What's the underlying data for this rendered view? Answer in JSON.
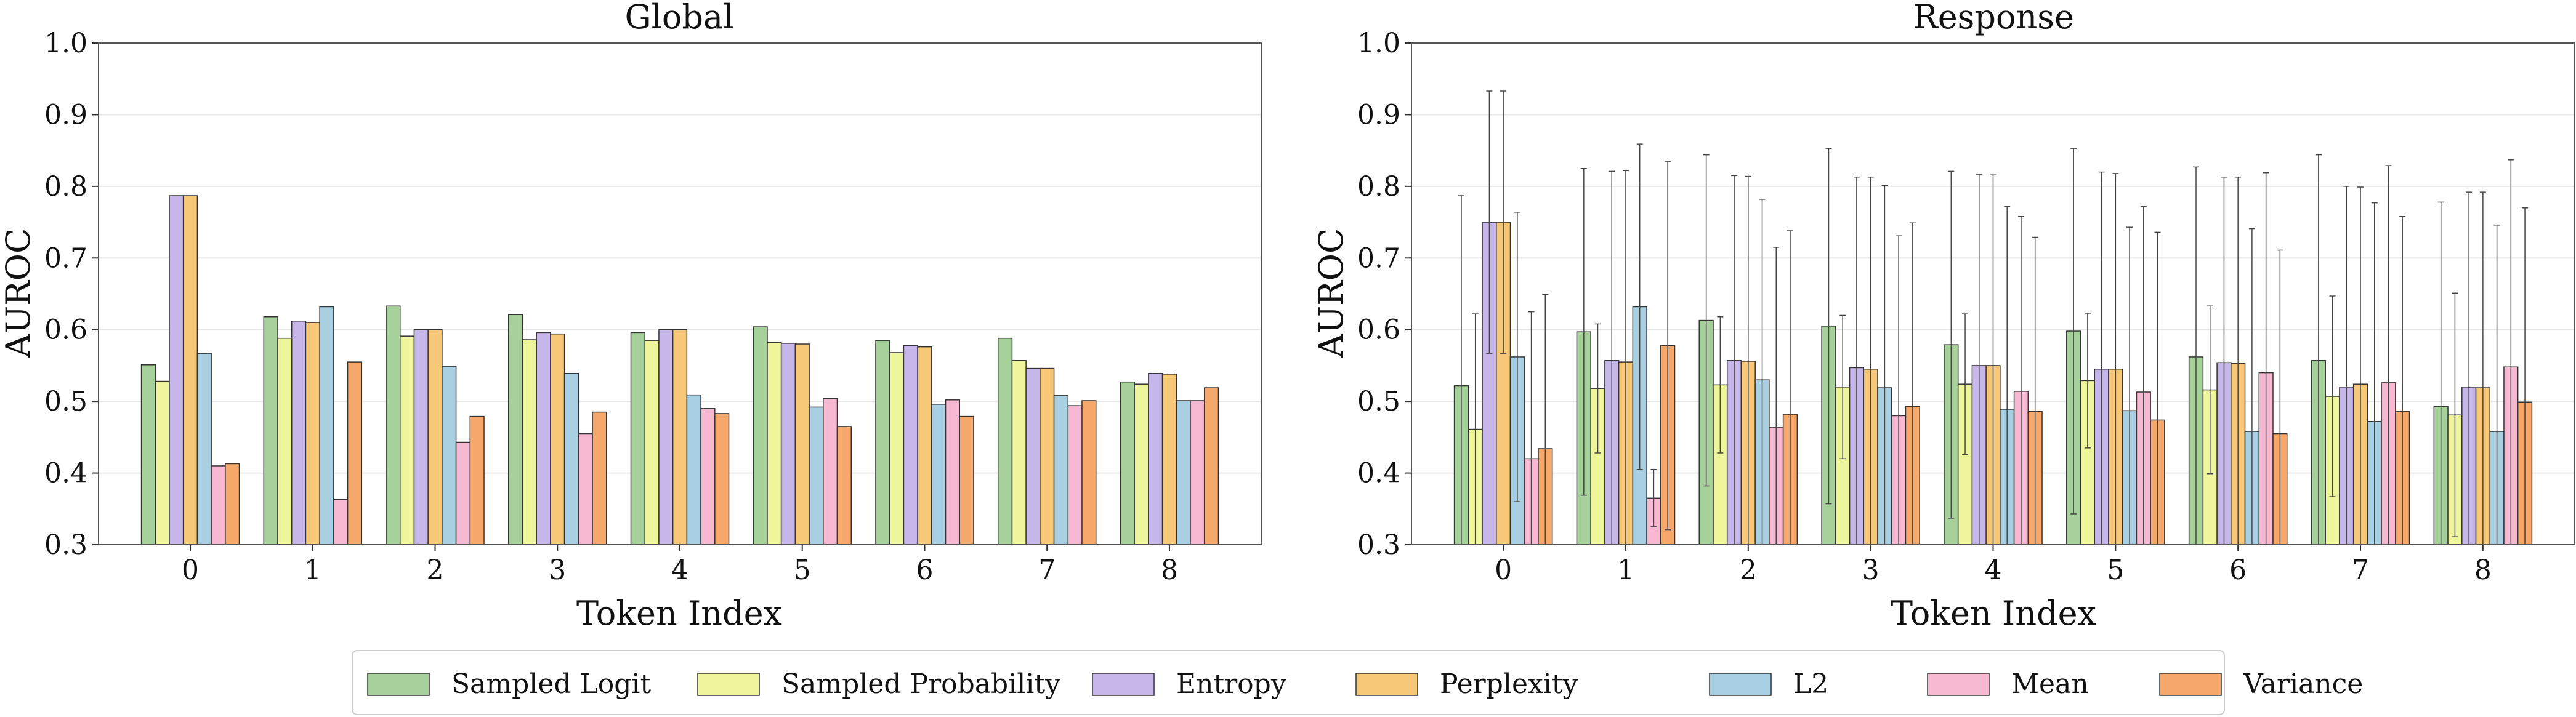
{
  "chart_data": [
    {
      "type": "bar",
      "title": "Global",
      "xlabel": "Token Index",
      "ylabel": "AUROC",
      "ylim": [
        0.3,
        1.0
      ],
      "yticks": [
        "0.3",
        "0.4",
        "0.5",
        "0.6",
        "0.7",
        "0.8",
        "0.9",
        "1.0"
      ],
      "categories": [
        "0",
        "1",
        "2",
        "3",
        "4",
        "5",
        "6",
        "7",
        "8"
      ],
      "grid": "horizontal",
      "series": [
        {
          "name": "Sampled Logit",
          "color": "#a6d19a",
          "values": [
            0.551,
            0.618,
            0.633,
            0.621,
            0.596,
            0.604,
            0.585,
            0.588,
            0.527
          ]
        },
        {
          "name": "Sampled Probability",
          "color": "#eef59a",
          "values": [
            0.528,
            0.588,
            0.591,
            0.586,
            0.585,
            0.582,
            0.568,
            0.557,
            0.524
          ]
        },
        {
          "name": "Entropy",
          "color": "#c6b6ea",
          "values": [
            0.787,
            0.612,
            0.6,
            0.596,
            0.6,
            0.581,
            0.578,
            0.546,
            0.539
          ]
        },
        {
          "name": "Perplexity",
          "color": "#f6c877",
          "values": [
            0.787,
            0.61,
            0.6,
            0.594,
            0.6,
            0.58,
            0.576,
            0.546,
            0.538
          ]
        },
        {
          "name": "L2",
          "color": "#a9d0e2",
          "values": [
            0.567,
            0.632,
            0.549,
            0.539,
            0.509,
            0.492,
            0.496,
            0.508,
            0.501
          ]
        },
        {
          "name": "Mean",
          "color": "#f7b8d1",
          "values": [
            0.41,
            0.363,
            0.443,
            0.455,
            0.49,
            0.504,
            0.502,
            0.494,
            0.501
          ]
        },
        {
          "name": "Variance",
          "color": "#f7a96b",
          "values": [
            0.413,
            0.555,
            0.479,
            0.485,
            0.483,
            0.465,
            0.479,
            0.501,
            0.519
          ]
        }
      ]
    },
    {
      "type": "bar",
      "title": "Response",
      "xlabel": "Token Index",
      "ylabel": "AUROC",
      "ylim": [
        0.3,
        1.0
      ],
      "yticks": [
        "0.3",
        "0.4",
        "0.5",
        "0.6",
        "0.7",
        "0.8",
        "0.9",
        "1.0"
      ],
      "categories": [
        "0",
        "1",
        "2",
        "3",
        "4",
        "5",
        "6",
        "7",
        "8"
      ],
      "grid": "horizontal",
      "error_bars": true,
      "series": [
        {
          "name": "Sampled Logit",
          "color": "#a6d19a",
          "values": [
            0.522,
            0.597,
            0.613,
            0.605,
            0.579,
            0.598,
            0.562,
            0.557,
            0.493
          ],
          "err": [
            0.265,
            0.228,
            0.231,
            0.248,
            0.242,
            0.255,
            0.265,
            0.287,
            0.285
          ]
        },
        {
          "name": "Sampled Probability",
          "color": "#eef59a",
          "values": [
            0.461,
            0.518,
            0.523,
            0.52,
            0.524,
            0.529,
            0.516,
            0.507,
            0.481
          ],
          "err": [
            0.161,
            0.09,
            0.095,
            0.1,
            0.098,
            0.094,
            0.117,
            0.14,
            0.17
          ]
        },
        {
          "name": "Entropy",
          "color": "#c6b6ea",
          "values": [
            0.75,
            0.557,
            0.557,
            0.547,
            0.55,
            0.545,
            0.554,
            0.52,
            0.52
          ],
          "err": [
            0.183,
            0.264,
            0.258,
            0.266,
            0.267,
            0.275,
            0.259,
            0.28,
            0.272
          ]
        },
        {
          "name": "Perplexity",
          "color": "#f6c877",
          "values": [
            0.75,
            0.555,
            0.556,
            0.545,
            0.55,
            0.545,
            0.553,
            0.524,
            0.519
          ],
          "err": [
            0.183,
            0.267,
            0.258,
            0.268,
            0.266,
            0.273,
            0.26,
            0.275,
            0.273
          ]
        },
        {
          "name": "L2",
          "color": "#a9d0e2",
          "values": [
            0.562,
            0.632,
            0.53,
            0.519,
            0.489,
            0.487,
            0.458,
            0.472,
            0.458
          ],
          "err": [
            0.202,
            0.227,
            0.252,
            0.282,
            0.283,
            0.256,
            0.283,
            0.305,
            0.288
          ]
        },
        {
          "name": "Mean",
          "color": "#f7b8d1",
          "values": [
            0.42,
            0.365,
            0.464,
            0.48,
            0.514,
            0.513,
            0.54,
            0.526,
            0.548
          ],
          "err": [
            0.205,
            0.04,
            0.251,
            0.251,
            0.244,
            0.259,
            0.279,
            0.303,
            0.289
          ]
        },
        {
          "name": "Variance",
          "color": "#f7a96b",
          "values": [
            0.434,
            0.578,
            0.482,
            0.493,
            0.486,
            0.474,
            0.455,
            0.486,
            0.499
          ],
          "err": [
            0.215,
            0.257,
            0.256,
            0.256,
            0.243,
            0.262,
            0.256,
            0.272,
            0.271
          ]
        }
      ]
    }
  ],
  "legend": {
    "placement": "bottom-center",
    "entries": [
      {
        "label": "Sampled Logit",
        "color": "#a6d19a"
      },
      {
        "label": "Sampled Probability",
        "color": "#eef59a"
      },
      {
        "label": "Entropy",
        "color": "#c6b6ea"
      },
      {
        "label": "Perplexity",
        "color": "#f6c877"
      },
      {
        "label": "L2",
        "color": "#a9d0e2"
      },
      {
        "label": "Mean",
        "color": "#f7b8d1"
      },
      {
        "label": "Variance",
        "color": "#f7a96b"
      }
    ]
  }
}
